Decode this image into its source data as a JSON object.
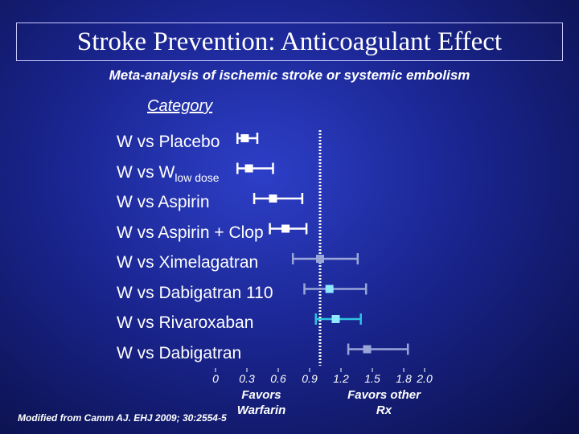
{
  "chart_data": {
    "type": "forest",
    "title": "Stroke Prevention: Anticoagulant Effect",
    "subtitle": "Meta-analysis of  ischemic stroke or systemic embolism",
    "category_header": "Category",
    "categories": [
      "W vs Placebo",
      "W vs W",
      "W vs Aspirin",
      "W vs Aspirin + Clop",
      "W vs Ximelagatran",
      "W vs Dabigatran 110",
      "W vs Rivaroxaban",
      "W vs Dabigatran"
    ],
    "subscripts": {
      "1": "low dose"
    },
    "values": [
      0.28,
      0.32,
      0.55,
      0.67,
      1.0,
      1.09,
      1.15,
      1.45
    ],
    "lower": [
      0.21,
      0.21,
      0.37,
      0.52,
      0.74,
      0.85,
      0.96,
      1.27
    ],
    "upper": [
      0.4,
      0.55,
      0.83,
      0.87,
      1.36,
      1.44,
      1.39,
      1.84
    ],
    "colors": [
      "#ffffff",
      "#ffffff",
      "#ffffff",
      "#ffffff",
      "#9aa6d8",
      "#8fe8ff",
      "#8fe8ff",
      "#9aa6d8"
    ],
    "bar_colors": [
      "#ffffff",
      "#ffffff",
      "#ffffff",
      "#ffffff",
      "#9aa6d8",
      "#9aa6d8",
      "#2fc3e0",
      "#9aa6d8"
    ],
    "xlim": [
      0,
      2
    ],
    "xticks": [
      0,
      0.3,
      0.6,
      0.9,
      1.2,
      1.5,
      1.8,
      {
        "value": 2,
        "label": "2.0"
      }
    ],
    "reference_line": 1,
    "left_note": "Favors\nWarfarin",
    "right_note": "Favors other\nRx",
    "footnote": "Modified from Camm AJ. EHJ 2009; 30:2554-5"
  }
}
